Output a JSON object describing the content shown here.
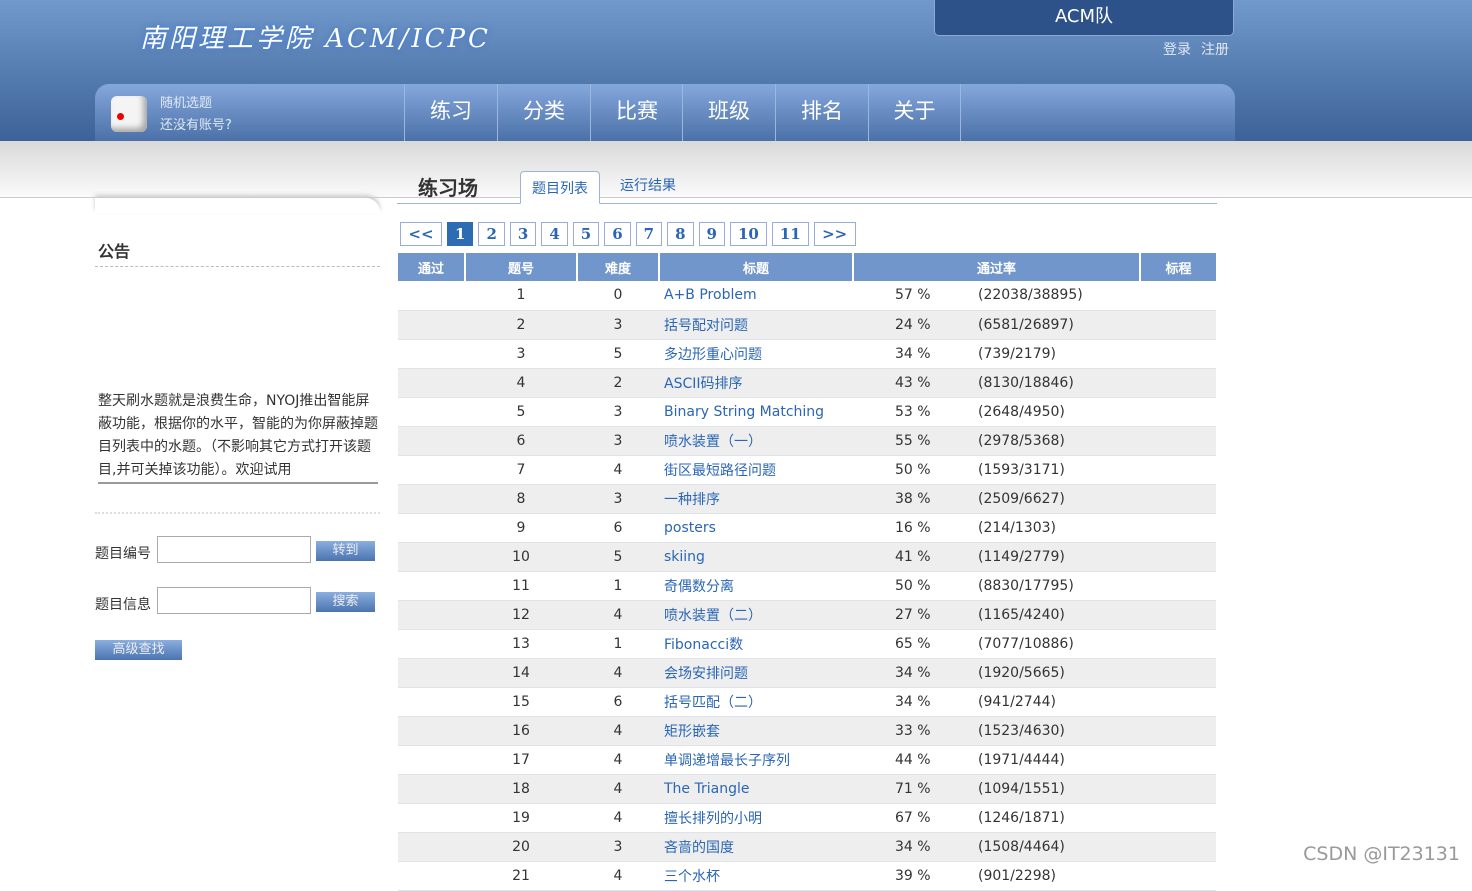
{
  "header": {
    "logo": "南阳理工学院 ACM/ICPC",
    "team": "ACM队",
    "login": "登录",
    "register": "注册"
  },
  "nav": {
    "random": "随机选题",
    "no_account": "还没有账号?",
    "items": [
      "练习",
      "分类",
      "比赛",
      "班级",
      "排名",
      "关于"
    ]
  },
  "sidebar": {
    "notice_title": "公告",
    "notice": "整天刷水题就是浪费生命，NYOJ推出智能屏蔽功能，根据你的水平，智能的为你屏蔽掉题目列表中的水题。（不影响其它方式打开该题目,并可关掉该功能）。欢迎试用",
    "id_label": "题目编号",
    "id_value": "",
    "go": "转到",
    "info_label": "题目信息",
    "info_value": "",
    "search": "搜索",
    "advanced": "高级查找"
  },
  "main": {
    "title": "练习场",
    "tabs": [
      "题目列表",
      "运行结果"
    ],
    "pager": [
      "<<",
      "1",
      "2",
      "3",
      "4",
      "5",
      "6",
      "7",
      "8",
      "9",
      "10",
      "11",
      ">>"
    ],
    "current_page": "1",
    "columns": [
      "通过",
      "题号",
      "难度",
      "标题",
      "通过率",
      "标程"
    ],
    "rows": [
      [
        "1",
        "0",
        "A+B Problem",
        "57 %",
        "(22038/38895)"
      ],
      [
        "2",
        "3",
        "括号配对问题",
        "24 %",
        "(6581/26897)"
      ],
      [
        "3",
        "5",
        "多边形重心问题",
        "34 %",
        "(739/2179)"
      ],
      [
        "4",
        "2",
        "ASCII码排序",
        "43 %",
        "(8130/18846)"
      ],
      [
        "5",
        "3",
        "Binary String Matching",
        "53 %",
        "(2648/4950)"
      ],
      [
        "6",
        "3",
        "喷水装置（一）",
        "55 %",
        "(2978/5368)"
      ],
      [
        "7",
        "4",
        "街区最短路径问题",
        "50 %",
        "(1593/3171)"
      ],
      [
        "8",
        "3",
        "一种排序",
        "38 %",
        "(2509/6627)"
      ],
      [
        "9",
        "6",
        "posters",
        "16 %",
        "(214/1303)"
      ],
      [
        "10",
        "5",
        "skiing",
        "41 %",
        "(1149/2779)"
      ],
      [
        "11",
        "1",
        "奇偶数分离",
        "50 %",
        "(8830/17795)"
      ],
      [
        "12",
        "4",
        "喷水装置（二）",
        "27 %",
        "(1165/4240)"
      ],
      [
        "13",
        "1",
        "Fibonacci数",
        "65 %",
        "(7077/10886)"
      ],
      [
        "14",
        "4",
        "会场安排问题",
        "34 %",
        "(1920/5665)"
      ],
      [
        "15",
        "6",
        "括号匹配（二）",
        "34 %",
        "(941/2744)"
      ],
      [
        "16",
        "4",
        "矩形嵌套",
        "33 %",
        "(1523/4630)"
      ],
      [
        "17",
        "4",
        "单调递增最长子序列",
        "44 %",
        "(1971/4444)"
      ],
      [
        "18",
        "4",
        "The Triangle",
        "71 %",
        "(1094/1551)"
      ],
      [
        "19",
        "4",
        "擅长排列的小明",
        "67 %",
        "(1246/1871)"
      ],
      [
        "20",
        "3",
        "吝啬的国度",
        "34 %",
        "(1508/4464)"
      ],
      [
        "21",
        "4",
        "三个水杯",
        "39 %",
        "(901/2298)"
      ]
    ]
  },
  "watermark": "CSDN @IT23131"
}
